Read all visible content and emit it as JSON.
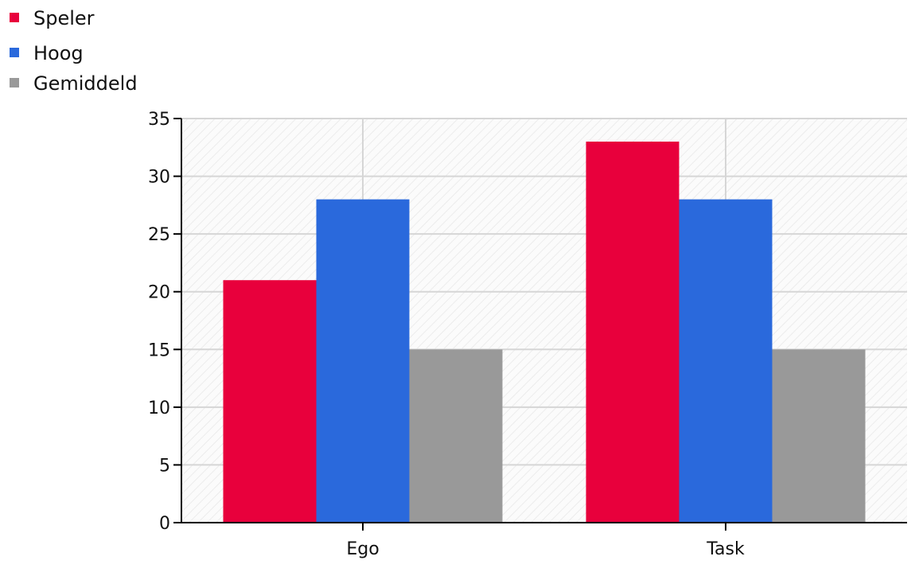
{
  "chart_data": {
    "type": "bar",
    "title": "",
    "xlabel": "",
    "ylabel": "",
    "categories": [
      "Ego",
      "Task"
    ],
    "series": [
      {
        "name": "Speler",
        "color": "#e8003c",
        "values": [
          21,
          33
        ]
      },
      {
        "name": "Hoog",
        "color": "#2a69dc",
        "values": [
          28,
          28
        ]
      },
      {
        "name": "Gemiddeld",
        "color": "#999999",
        "values": [
          15,
          15
        ]
      }
    ],
    "ylim": [
      0,
      35
    ],
    "yticks": [
      "0",
      "5",
      "10",
      "15",
      "20",
      "25",
      "30",
      "35"
    ],
    "grid": true,
    "legend_position": "top-left"
  }
}
